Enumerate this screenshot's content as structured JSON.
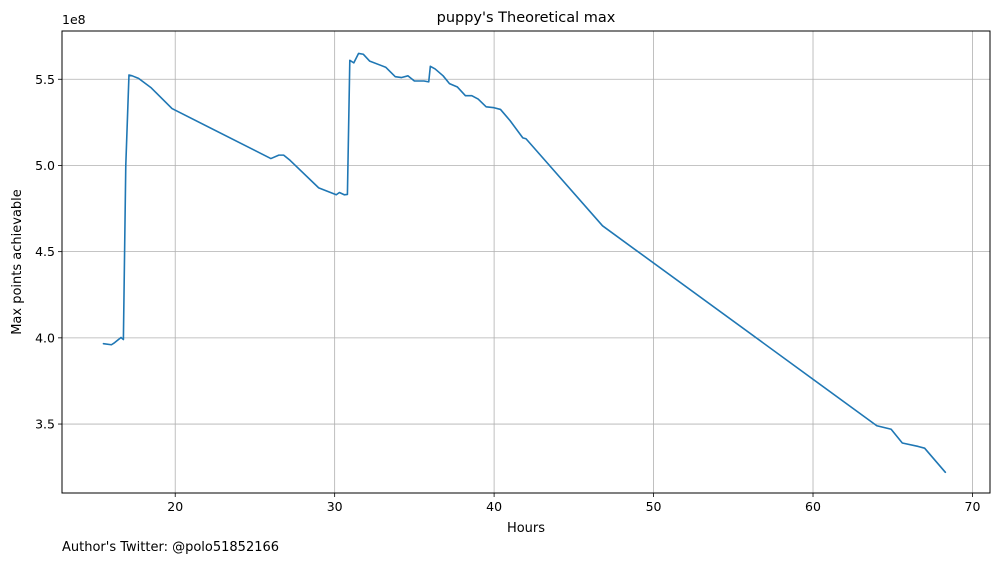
{
  "chart_data": {
    "type": "line",
    "title": "puppy's Theoretical max",
    "xlabel": "Hours",
    "ylabel": "Max points achievable",
    "y_offset_label": "1e8",
    "xlim": [
      12.9,
      71.1
    ],
    "ylim": [
      310000000.0,
      578000000.0
    ],
    "xticks": [
      20,
      30,
      40,
      50,
      60,
      70
    ],
    "xtick_labels": [
      "20",
      "30",
      "40",
      "50",
      "60",
      "70"
    ],
    "yticks": [
      350000000.0,
      400000000.0,
      450000000.0,
      500000000.0,
      550000000.0
    ],
    "ytick_labels": [
      "3.5",
      "4.0",
      "4.5",
      "5.0",
      "5.5"
    ],
    "grid": true,
    "line_color": "#1f77b4",
    "series": [
      {
        "x": [
          15.5,
          16.0,
          16.2,
          16.6,
          16.75,
          16.9,
          17.1,
          17.3,
          17.7,
          18.5,
          19.8,
          26.0,
          26.5,
          26.8,
          27.2,
          29.0,
          30.1,
          30.3,
          30.6,
          30.8,
          30.95,
          31.2,
          31.5,
          31.8,
          32.2,
          33.2,
          33.8,
          34.2,
          34.6,
          35.0,
          35.6,
          35.9,
          36.0,
          36.3,
          36.8,
          37.2,
          37.7,
          38.2,
          38.6,
          39.0,
          39.5,
          40.0,
          40.4,
          41.0,
          41.8,
          42.0,
          46.8,
          64.0,
          64.9,
          65.6,
          66.6,
          67.0,
          68.3
        ],
        "y": [
          396600000.0,
          396000000.0,
          397200000.0,
          400200000.0,
          399000000.0,
          500000000.0,
          552500000.0,
          552000000.0,
          550500000.0,
          545000000.0,
          533000000.0,
          504000000.0,
          506000000.0,
          506000000.0,
          503000000.0,
          487000000.0,
          483000000.0,
          484300000.0,
          483000000.0,
          483200000.0,
          561000000.0,
          559500000.0,
          565000000.0,
          564500000.0,
          560500000.0,
          557000000.0,
          551500000.0,
          551000000.0,
          552000000.0,
          549000000.0,
          549000000.0,
          548500000.0,
          557500000.0,
          556000000.0,
          552000000.0,
          547500000.0,
          545500000.0,
          540500000.0,
          540500000.0,
          538500000.0,
          534000000.0,
          533500000.0,
          532500000.0,
          526000000.0,
          516000000.0,
          515500000.0,
          465000000.0,
          349000000.0,
          347000000.0,
          339000000.0,
          337000000.0,
          336000000.0,
          322000000.0
        ]
      }
    ]
  },
  "footer": {
    "author_text": "Author's Twitter: @polo51852166"
  }
}
